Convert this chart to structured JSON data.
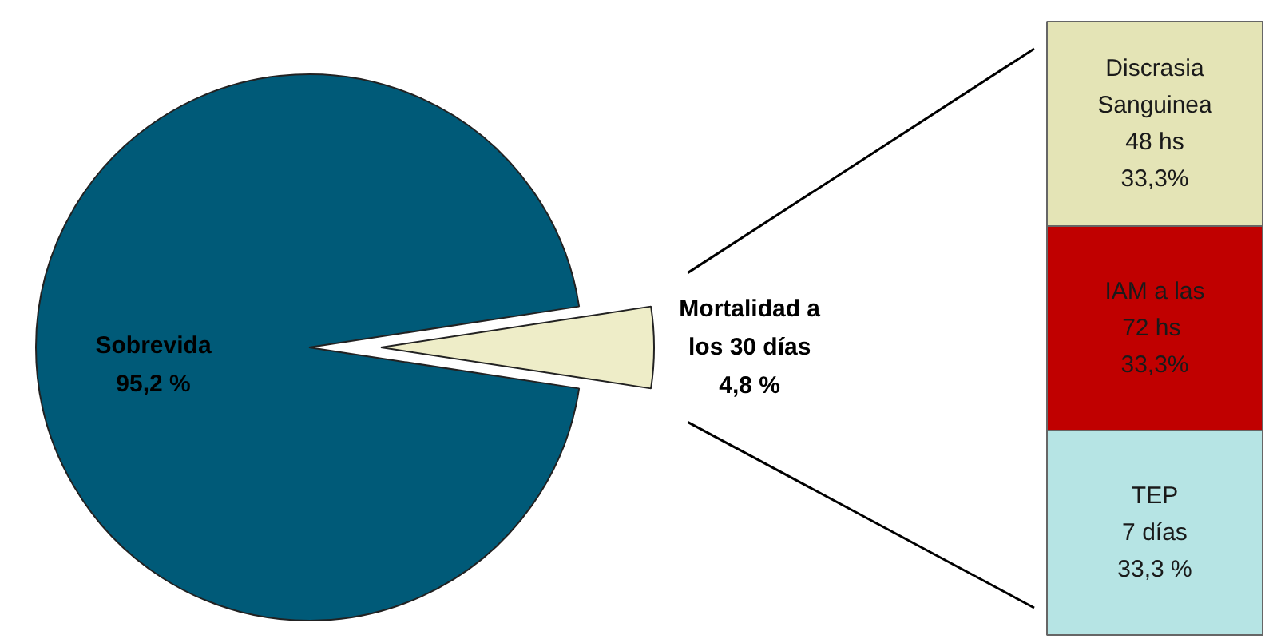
{
  "chart_data": [
    {
      "type": "pie",
      "categories": [
        "Sobrevida",
        "Mortalidad a\nlos 30 días"
      ],
      "values": [
        95.2,
        4.8
      ],
      "value_labels": [
        "95,2 %",
        "4,8 %"
      ],
      "colors": [
        "#005a78",
        "#eeedc8"
      ]
    },
    {
      "type": "bar",
      "stacked": true,
      "categories": [
        null
      ],
      "series": [
        {
          "name": "TEP\n7 días",
          "color": "#b6e4e4",
          "values": [
            33.3
          ],
          "value_labels": [
            "33,3 %"
          ]
        },
        {
          "name": "IAM a las\n72  hs",
          "color": "#c00000",
          "values": [
            33.3
          ],
          "value_labels": [
            "33,3%"
          ]
        },
        {
          "name": "Discrasia\nSanguinea\n48 hs",
          "color": "#e4e4b6",
          "values": [
            33.3
          ],
          "value_labels": [
            "33,3%"
          ]
        }
      ]
    }
  ]
}
